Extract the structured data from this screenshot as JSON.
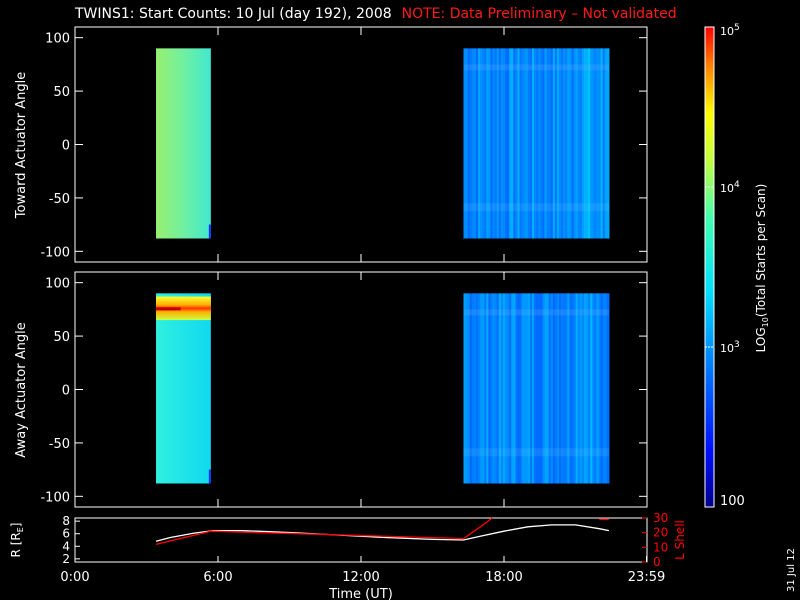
{
  "title": "TWINS1: Start Counts: 10 Jul (day 192), 2008",
  "note": "NOTE: Data Preliminary – Not validated",
  "stamp": "31 Jul 12",
  "chart_data": [
    {
      "type": "heatmap",
      "panel": "toward",
      "ylabel": "Toward Actuator Angle",
      "xlim": [
        0,
        24
      ],
      "ylim": [
        -110,
        110
      ],
      "yticks": [
        100,
        50,
        0,
        -50,
        -100
      ],
      "data_blocks": [
        {
          "t_start": 3.4,
          "t_end": 5.7,
          "angle_min": -88,
          "angle_max": 90,
          "log_counts": 3.55
        },
        {
          "t_start": 16.3,
          "t_end": 22.4,
          "angle_min": -88,
          "angle_max": 90,
          "log_counts": 2.95
        }
      ]
    },
    {
      "type": "heatmap",
      "panel": "away",
      "ylabel": "Away Actuator Angle",
      "xlim": [
        0,
        24
      ],
      "ylim": [
        -110,
        110
      ],
      "yticks": [
        100,
        50,
        0,
        -50,
        -100
      ],
      "data_blocks": [
        {
          "t_start": 3.4,
          "t_end": 5.7,
          "angle_min": -88,
          "angle_max": 90,
          "log_counts": 3.3
        },
        {
          "t_start": 16.3,
          "t_end": 22.4,
          "angle_min": -88,
          "angle_max": 90,
          "log_counts": 2.95
        }
      ],
      "hot_band": {
        "t_start": 3.4,
        "t_end": 5.7,
        "angle_min": 65,
        "angle_max": 87,
        "log_counts": 4.2
      }
    },
    {
      "type": "line",
      "panel": "orbit",
      "xlabel": "Time (UT)",
      "xticks": [
        "0:00",
        "6:00",
        "12:00",
        "18:00",
        "23:59"
      ],
      "xtick_values": [
        0,
        6,
        12,
        18,
        23.98
      ],
      "ylabel_left": "R [R",
      "ylabel_left_sub": "E",
      "ylabel_left_end": "]",
      "yticks_left": [
        2,
        4,
        6,
        8
      ],
      "ylim_left": [
        1.5,
        8.5
      ],
      "ylabel_right": "L Shell",
      "yticks_right": [
        0,
        10,
        20,
        30
      ],
      "ylim_right": [
        0,
        30
      ],
      "right_color": "#ff0000",
      "series": [
        {
          "axis": "left",
          "color": "#ffffff",
          "x": [
            3.4,
            4.0,
            5.0,
            5.8,
            7.0,
            9.0,
            11.0,
            13.0,
            15.0,
            16.3,
            17.0,
            18.0,
            19.0,
            20.0,
            21.0,
            22.0,
            22.4
          ],
          "y": [
            4.8,
            5.4,
            6.1,
            6.5,
            6.5,
            6.2,
            5.8,
            5.4,
            5.1,
            5.0,
            5.6,
            6.4,
            7.1,
            7.4,
            7.4,
            6.8,
            6.5
          ]
        },
        {
          "axis": "right",
          "color": "#ff0000",
          "x": [
            3.4,
            5.7,
            16.3,
            17.1,
            17.5
          ],
          "y": [
            12,
            21,
            16,
            25,
            30
          ]
        },
        {
          "axis": "right",
          "color": "#ff0000",
          "x": [
            22.0,
            22.4
          ],
          "y": [
            29,
            29
          ]
        }
      ]
    }
  ],
  "colorbar": {
    "label": "LOG",
    "label_sub": "10",
    "label_end": "(Total Starts per Scan)",
    "ticks": [
      "10",
      "10",
      "10",
      "100"
    ],
    "tick_exponents": [
      "5",
      "4",
      "3",
      ""
    ],
    "range_log": [
      2,
      5
    ]
  }
}
